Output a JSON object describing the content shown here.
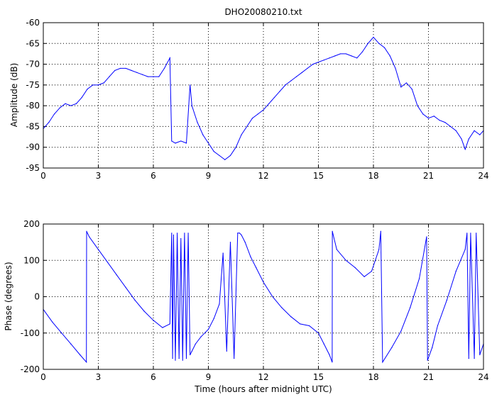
{
  "chart_data": [
    {
      "type": "line",
      "title": "DHO20080210.txt",
      "xlabel": "",
      "ylabel": "Amplitude (dB)",
      "xlim": [
        0,
        24
      ],
      "ylim": [
        -95,
        -60
      ],
      "xticks": [
        "0",
        "3",
        "6",
        "9",
        "12",
        "15",
        "18",
        "21",
        "24"
      ],
      "yticks": [
        "-60",
        "-65",
        "-70",
        "-75",
        "-80",
        "-85",
        "-90",
        "-95"
      ],
      "grid": true,
      "color": "#0000ff",
      "x": [
        0,
        0.3,
        0.6,
        0.9,
        1.2,
        1.5,
        1.8,
        2.1,
        2.4,
        2.7,
        3.0,
        3.3,
        3.6,
        3.9,
        4.2,
        4.5,
        4.8,
        5.1,
        5.4,
        5.7,
        6.0,
        6.3,
        6.6,
        6.9,
        7.0,
        7.2,
        7.5,
        7.8,
        8.0,
        8.1,
        8.4,
        8.7,
        9.0,
        9.3,
        9.6,
        9.9,
        10.2,
        10.5,
        10.8,
        11.1,
        11.4,
        11.7,
        12.0,
        12.3,
        12.6,
        12.9,
        13.2,
        13.5,
        13.8,
        14.1,
        14.4,
        14.7,
        15.0,
        15.3,
        15.6,
        15.9,
        16.2,
        16.5,
        16.8,
        17.1,
        17.4,
        17.7,
        18.0,
        18.3,
        18.6,
        18.9,
        19.2,
        19.5,
        19.8,
        20.1,
        20.4,
        20.7,
        21.0,
        21.3,
        21.6,
        21.9,
        22.2,
        22.5,
        22.8,
        23.0,
        23.2,
        23.5,
        23.8,
        24.0
      ],
      "values": [
        -85.5,
        -84,
        -82,
        -80.5,
        -79.5,
        -80,
        -79.5,
        -78,
        -76,
        -75,
        -75,
        -74.5,
        -73,
        -71.5,
        -71,
        -71,
        -71.5,
        -72,
        -72.5,
        -73,
        -73,
        -73,
        -71,
        -68.5,
        -88.5,
        -89,
        -88.5,
        -89,
        -75,
        -80,
        -84,
        -87,
        -89,
        -91,
        -92,
        -93,
        -92,
        -90,
        -87,
        -85,
        -83,
        -82,
        -81,
        -79.5,
        -78,
        -76.5,
        -75,
        -74,
        -73,
        -72,
        -71,
        -70,
        -69.5,
        -69,
        -68.5,
        -68,
        -67.5,
        -67.5,
        -68,
        -68.5,
        -67,
        -65,
        -63.5,
        -65,
        -66,
        -68,
        -71,
        -75.5,
        -74.5,
        -76,
        -80,
        -82,
        -83,
        -82.5,
        -83.5,
        -84,
        -85,
        -86,
        -88,
        -90.5,
        -88,
        -86,
        -87,
        -86
      ]
    },
    {
      "type": "line",
      "title": "",
      "xlabel": "Time (hours after midnight UTC)",
      "ylabel": "Phase (degrees)",
      "xlim": [
        0,
        24
      ],
      "ylim": [
        -200,
        200
      ],
      "xticks": [
        "0",
        "3",
        "6",
        "9",
        "12",
        "15",
        "18",
        "21",
        "24"
      ],
      "yticks": [
        "200",
        "100",
        "0",
        "-100",
        "-200"
      ],
      "grid": true,
      "color": "#0000ff",
      "x": [
        0,
        0.5,
        1.0,
        1.5,
        2.0,
        2.35,
        2.36,
        2.5,
        3.0,
        3.5,
        4.0,
        4.5,
        5.0,
        5.5,
        6.0,
        6.5,
        6.9,
        7.0,
        7.05,
        7.1,
        7.2,
        7.3,
        7.4,
        7.5,
        7.6,
        7.7,
        7.8,
        7.9,
        8.0,
        8.1,
        8.3,
        8.6,
        9.0,
        9.3,
        9.6,
        9.8,
        10.0,
        10.2,
        10.4,
        10.6,
        10.7,
        10.8,
        11.0,
        11.3,
        11.6,
        12.0,
        12.5,
        13.0,
        13.5,
        14.0,
        14.5,
        15.0,
        15.3,
        15.6,
        15.75,
        15.76,
        16.0,
        16.5,
        17.0,
        17.5,
        17.9,
        18.3,
        18.4,
        18.5,
        19.0,
        19.5,
        20.0,
        20.5,
        20.9,
        20.95,
        21.2,
        21.5,
        22.0,
        22.5,
        23.0,
        23.1,
        23.2,
        23.3,
        23.5,
        23.6,
        23.8,
        24.0
      ],
      "values": [
        -35,
        -70,
        -100,
        -130,
        -160,
        -180,
        180,
        165,
        130,
        95,
        60,
        25,
        -10,
        -40,
        -65,
        -85,
        -75,
        175,
        -170,
        170,
        -175,
        175,
        -170,
        160,
        -175,
        175,
        -170,
        175,
        -160,
        -150,
        -130,
        -110,
        -90,
        -60,
        -20,
        120,
        -150,
        150,
        -170,
        175,
        175,
        170,
        150,
        110,
        80,
        40,
        0,
        -30,
        -55,
        -75,
        -80,
        -100,
        -130,
        -160,
        -180,
        180,
        130,
        100,
        80,
        55,
        70,
        130,
        180,
        -180,
        -140,
        -95,
        -30,
        50,
        165,
        -175,
        -140,
        -80,
        -10,
        70,
        130,
        175,
        -170,
        175,
        -170,
        175,
        -160,
        -130
      ]
    }
  ]
}
